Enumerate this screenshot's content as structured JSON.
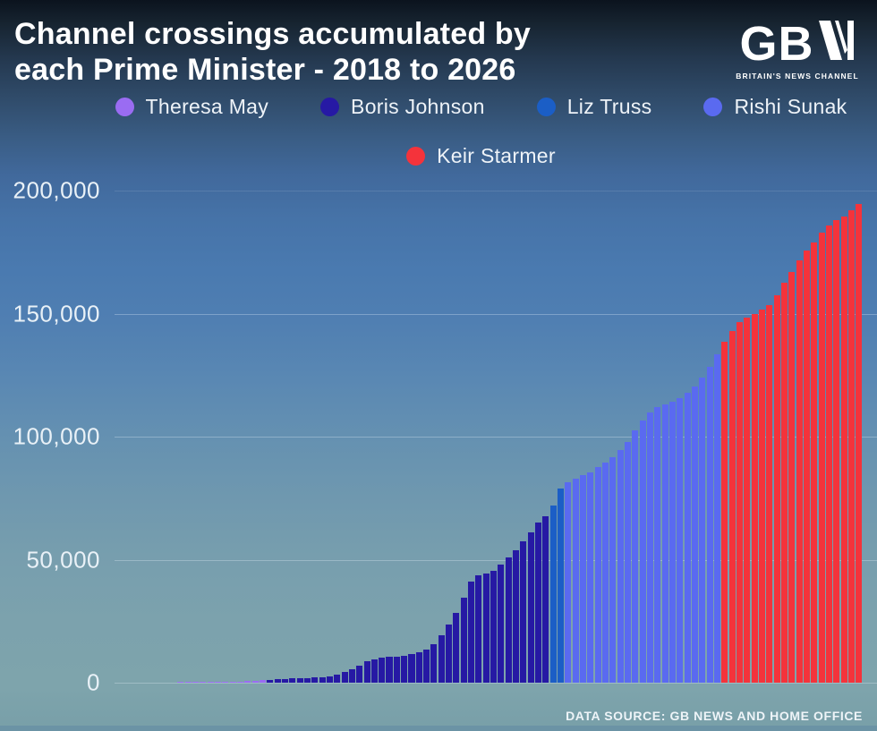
{
  "header": {
    "title_line1": "Channel crossings accumulated by",
    "title_line2": "each Prime Minister - 2018 to 2026"
  },
  "logo": {
    "text_gb": "GB",
    "letter_n": "N",
    "tagline": "BRITAIN'S NEWS CHANNEL"
  },
  "legend": [
    {
      "label": "Theresa May",
      "color": "#9a6cf2"
    },
    {
      "label": "Boris Johnson",
      "color": "#2619a4"
    },
    {
      "label": "Liz Truss",
      "color": "#1b5ec6"
    },
    {
      "label": "Rishi Sunak",
      "color": "#5a6af0"
    },
    {
      "label": "Keir Starmer",
      "color": "#f4333b"
    }
  ],
  "chart_data": {
    "type": "bar",
    "title": "Channel crossings accumulated by each Prime Minister - 2018 to 2026",
    "xlabel": "",
    "ylabel": "",
    "ylim": [
      0,
      200000
    ],
    "grid": true,
    "legend_position": "top",
    "x_unit": "months, 2018 to 2026 (no tick labels shown)",
    "y_ticks": [
      {
        "label": "0",
        "value": 0
      },
      {
        "label": "50,000",
        "value": 50000
      },
      {
        "label": "100,000",
        "value": 100000
      },
      {
        "label": "150,000",
        "value": 150000
      },
      {
        "label": "200,000",
        "value": 200000
      }
    ],
    "series": [
      {
        "name": "Theresa May",
        "color": "#9a6cf2",
        "values": [
          0,
          0,
          0,
          0,
          0,
          0,
          0,
          60,
          120,
          180,
          240,
          300,
          340,
          380,
          450,
          540,
          650,
          800,
          950
        ]
      },
      {
        "name": "Boris Johnson",
        "color": "#2619a4",
        "values": [
          1100,
          1300,
          1500,
          1700,
          1900,
          2000,
          2100,
          2300,
          2700,
          3400,
          4200,
          5300,
          6900,
          8800,
          9600,
          10100,
          10400,
          10700,
          11000,
          11600,
          12500,
          13600,
          15700,
          19200,
          23700,
          28400,
          34400,
          41100,
          43800,
          44500,
          45300,
          48000,
          51000,
          54000,
          57500,
          61000,
          65000,
          67500
        ]
      },
      {
        "name": "Liz Truss",
        "color": "#1b5ec6",
        "values": [
          72000,
          79000
        ]
      },
      {
        "name": "Rishi Sunak",
        "color": "#5a6af0",
        "values": [
          81500,
          83000,
          84200,
          85500,
          87500,
          89500,
          91500,
          94500,
          98000,
          102500,
          106500,
          110000,
          112000,
          113000,
          114200,
          115500,
          118000,
          120500,
          124000,
          128500,
          133500
        ]
      },
      {
        "name": "Keir Starmer",
        "color": "#f4333b",
        "values": [
          138500,
          143000,
          146500,
          148500,
          150000,
          151500,
          153500,
          157500,
          162500,
          167000,
          171500,
          175500,
          179000,
          183000,
          186000,
          188000,
          189500,
          192000,
          194500
        ]
      }
    ]
  },
  "footer": {
    "source": "DATA SOURCE: GB NEWS AND HOME OFFICE"
  }
}
